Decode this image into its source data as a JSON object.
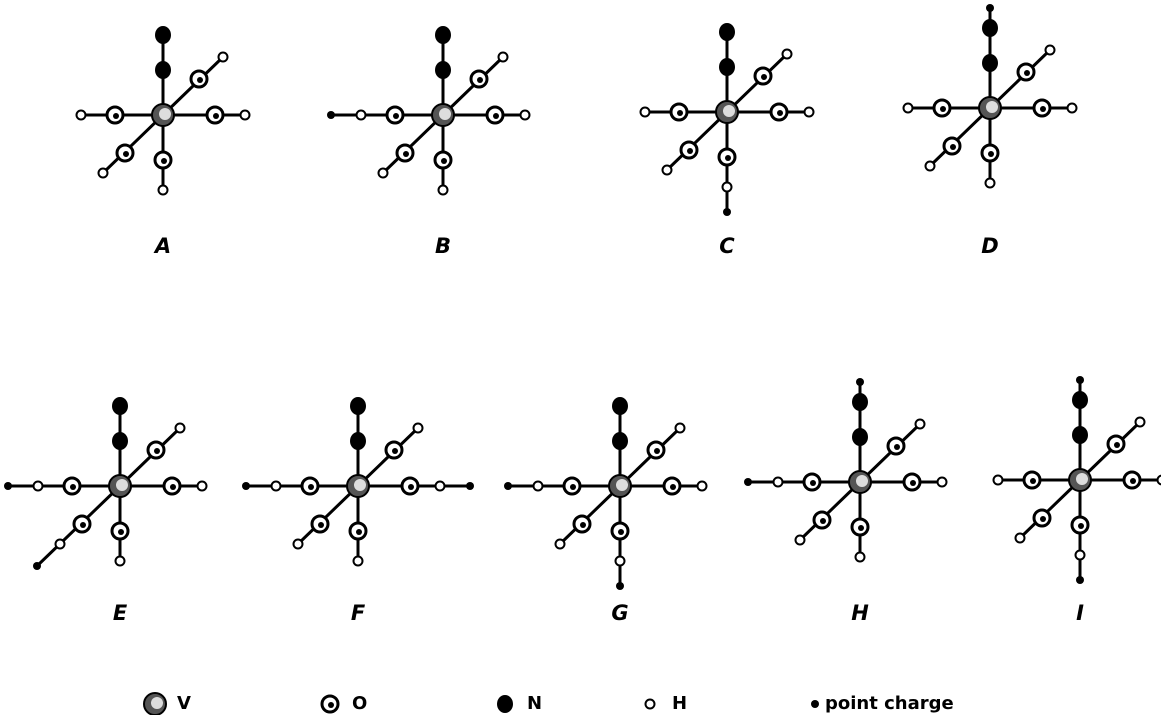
{
  "panels": [
    {
      "label": "A"
    },
    {
      "label": "B"
    },
    {
      "label": "C"
    },
    {
      "label": "D"
    },
    {
      "label": "E"
    },
    {
      "label": "F"
    },
    {
      "label": "G"
    },
    {
      "label": "H"
    },
    {
      "label": "I"
    }
  ],
  "legend": [
    {
      "label": "V"
    },
    {
      "label": "O"
    },
    {
      "label": "N"
    },
    {
      "label": "H"
    },
    {
      "label": "point charge"
    }
  ]
}
